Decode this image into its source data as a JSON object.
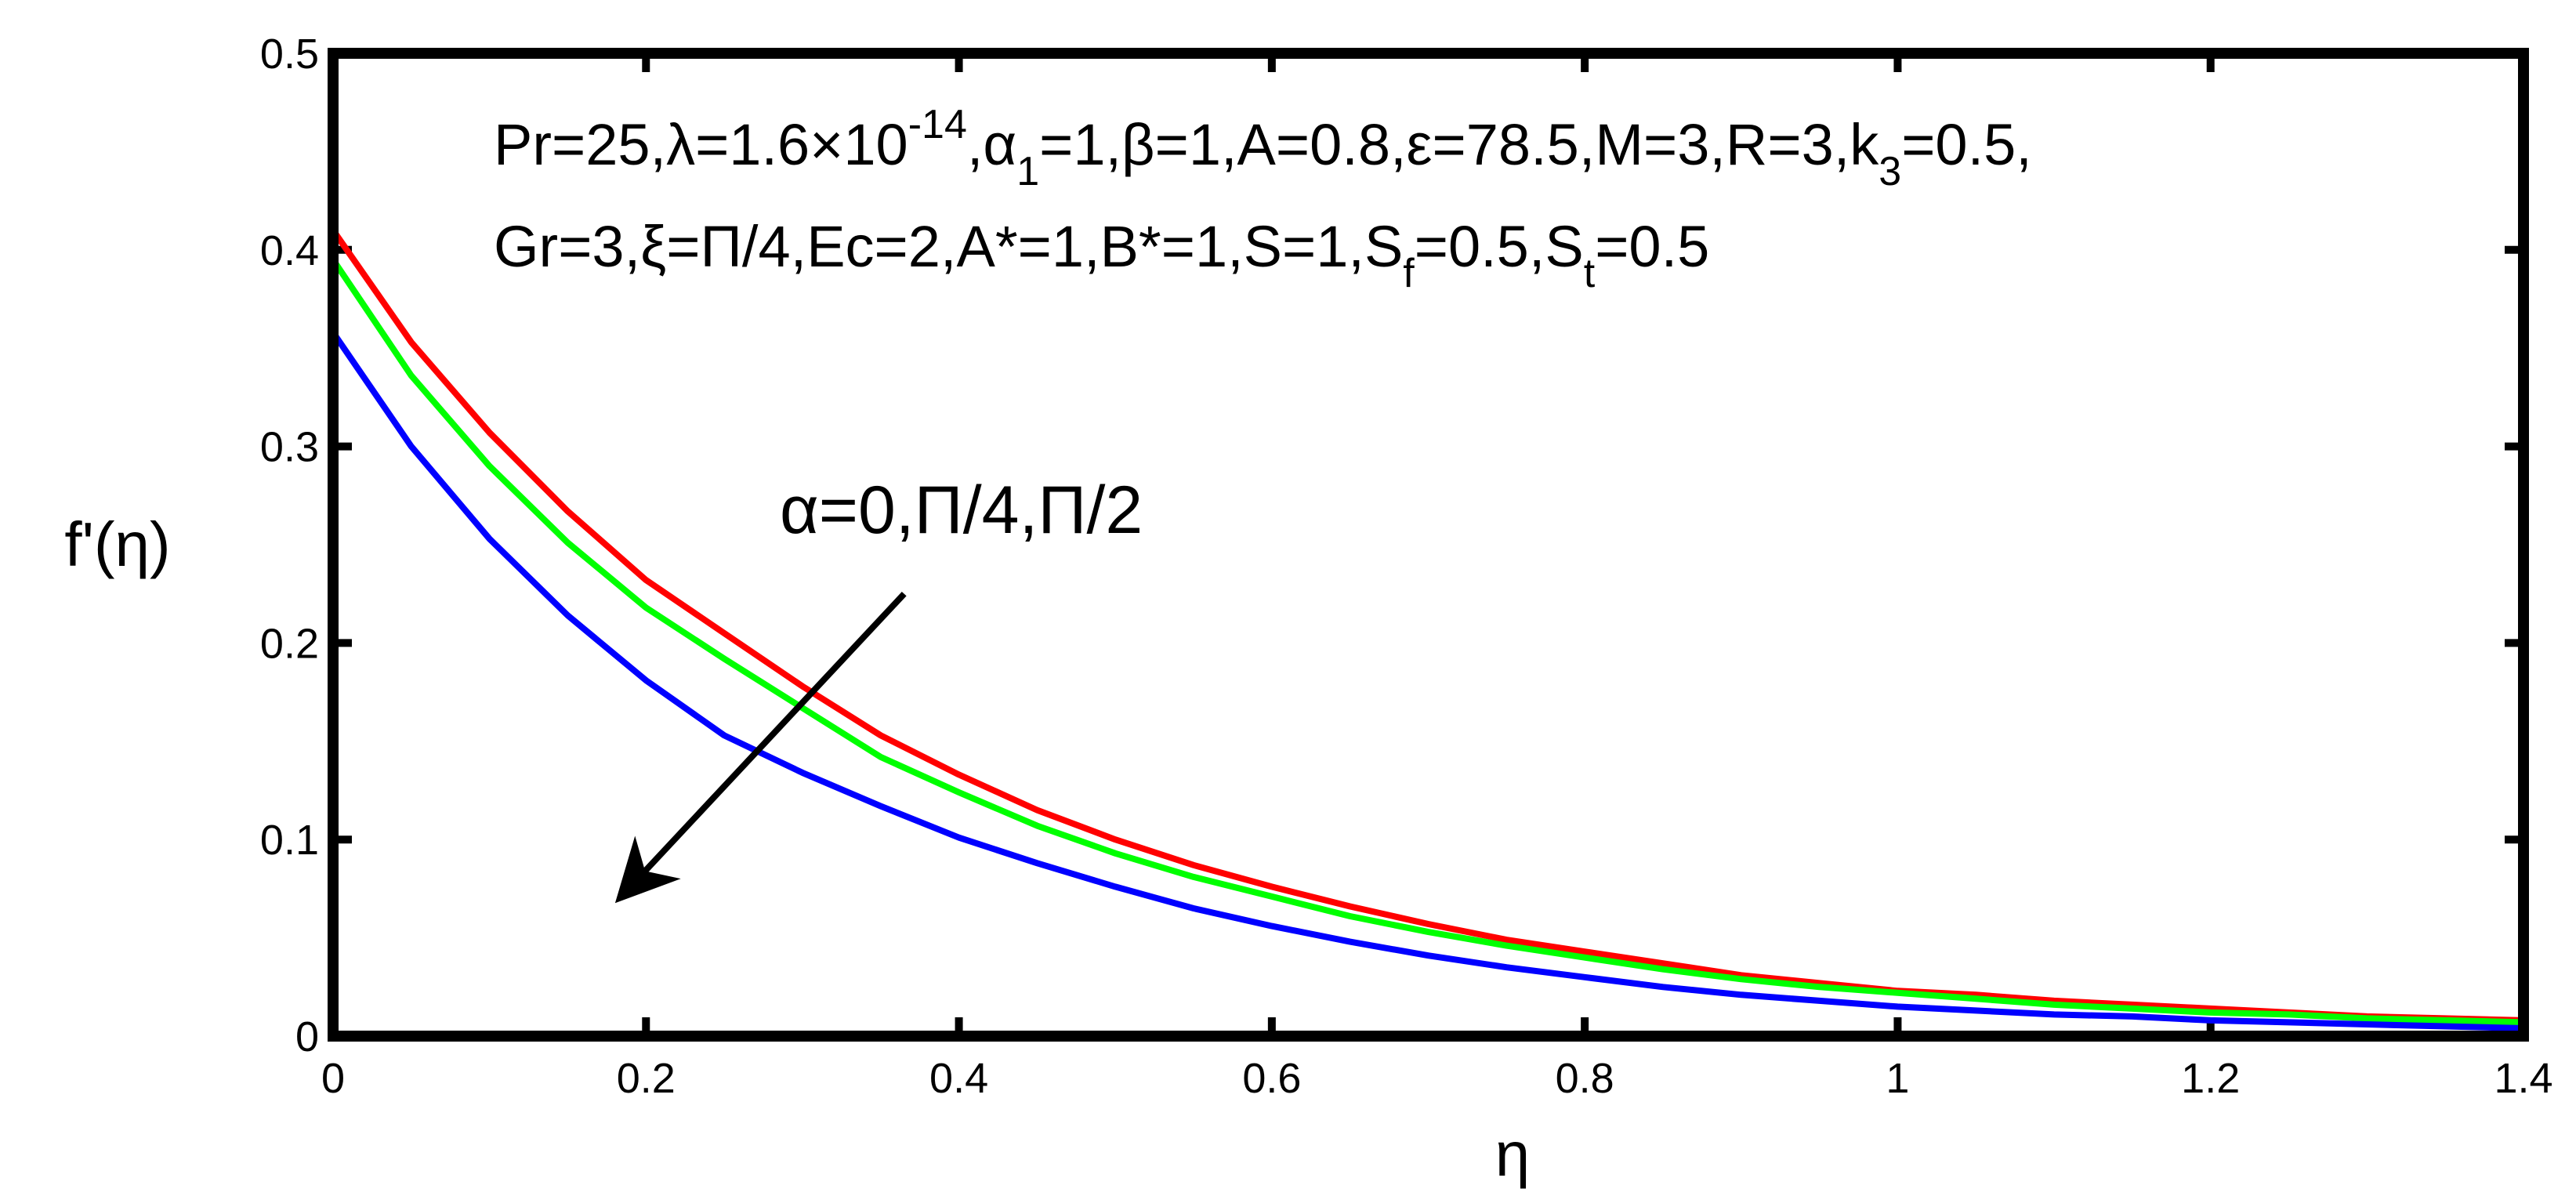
{
  "chart_data": {
    "type": "line",
    "title": "",
    "xlabel": "η",
    "ylabel": "f'(η)",
    "xlim": [
      0,
      1.4
    ],
    "ylim": [
      0,
      0.5
    ],
    "xticks": [
      "0",
      "0.2",
      "0.4",
      "0.6",
      "0.8",
      "1",
      "1.2",
      "1.4"
    ],
    "yticks": [
      "0",
      "0.1",
      "0.2",
      "0.3",
      "0.4",
      "0.5"
    ],
    "grid": false,
    "legend": "none",
    "x": [
      0,
      0.05,
      0.1,
      0.15,
      0.2,
      0.25,
      0.3,
      0.35,
      0.4,
      0.45,
      0.5,
      0.55,
      0.6,
      0.65,
      0.7,
      0.75,
      0.8,
      0.85,
      0.9,
      0.95,
      1.0,
      1.05,
      1.1,
      1.15,
      1.2,
      1.25,
      1.3,
      1.35,
      1.4
    ],
    "series": [
      {
        "color": "#ff0000",
        "values": [
          0.41,
          0.353,
          0.307,
          0.267,
          0.232,
          0.205,
          0.178,
          0.153,
          0.133,
          0.115,
          0.1,
          0.087,
          0.076,
          0.066,
          0.057,
          0.049,
          0.043,
          0.037,
          0.031,
          0.027,
          0.023,
          0.021,
          0.018,
          0.016,
          0.014,
          0.012,
          0.01,
          0.009,
          0.008
        ]
      },
      {
        "color": "#00ff00",
        "values": [
          0.395,
          0.336,
          0.29,
          0.251,
          0.218,
          0.192,
          0.167,
          0.142,
          0.124,
          0.107,
          0.093,
          0.081,
          0.071,
          0.061,
          0.053,
          0.046,
          0.04,
          0.034,
          0.029,
          0.025,
          0.022,
          0.019,
          0.016,
          0.014,
          0.012,
          0.011,
          0.009,
          0.008,
          0.007
        ]
      },
      {
        "color": "#0000ff",
        "values": [
          0.358,
          0.3,
          0.253,
          0.214,
          0.181,
          0.153,
          0.134,
          0.117,
          0.101,
          0.088,
          0.076,
          0.065,
          0.056,
          0.048,
          0.041,
          0.035,
          0.03,
          0.025,
          0.021,
          0.018,
          0.015,
          0.013,
          0.011,
          0.01,
          0.008,
          0.007,
          0.006,
          0.005,
          0.004
        ]
      }
    ],
    "annotation": {
      "label": "α=0,Π/4,Π/2",
      "arrow_from": [
        0.365,
        0.225
      ],
      "arrow_to": [
        0.183,
        0.07
      ]
    },
    "params": {
      "line1": {
        "a": "Pr=25,λ=1.6×10",
        "a_sup": "-14",
        "b": ",α",
        "b_sub": "1",
        "c": "=1,β=1,A=0.8,ε=78.5,M=3,R=3,k",
        "c_sub": "3",
        "d": "=0.5,"
      },
      "line2": {
        "a": "Gr=3,ξ=Π/4,Ec=2,A*=1,B*=1,S=1,S",
        "a_sub": "f",
        "b": "=0.5,S",
        "b_sub": "t",
        "c": "=0.5"
      }
    }
  }
}
